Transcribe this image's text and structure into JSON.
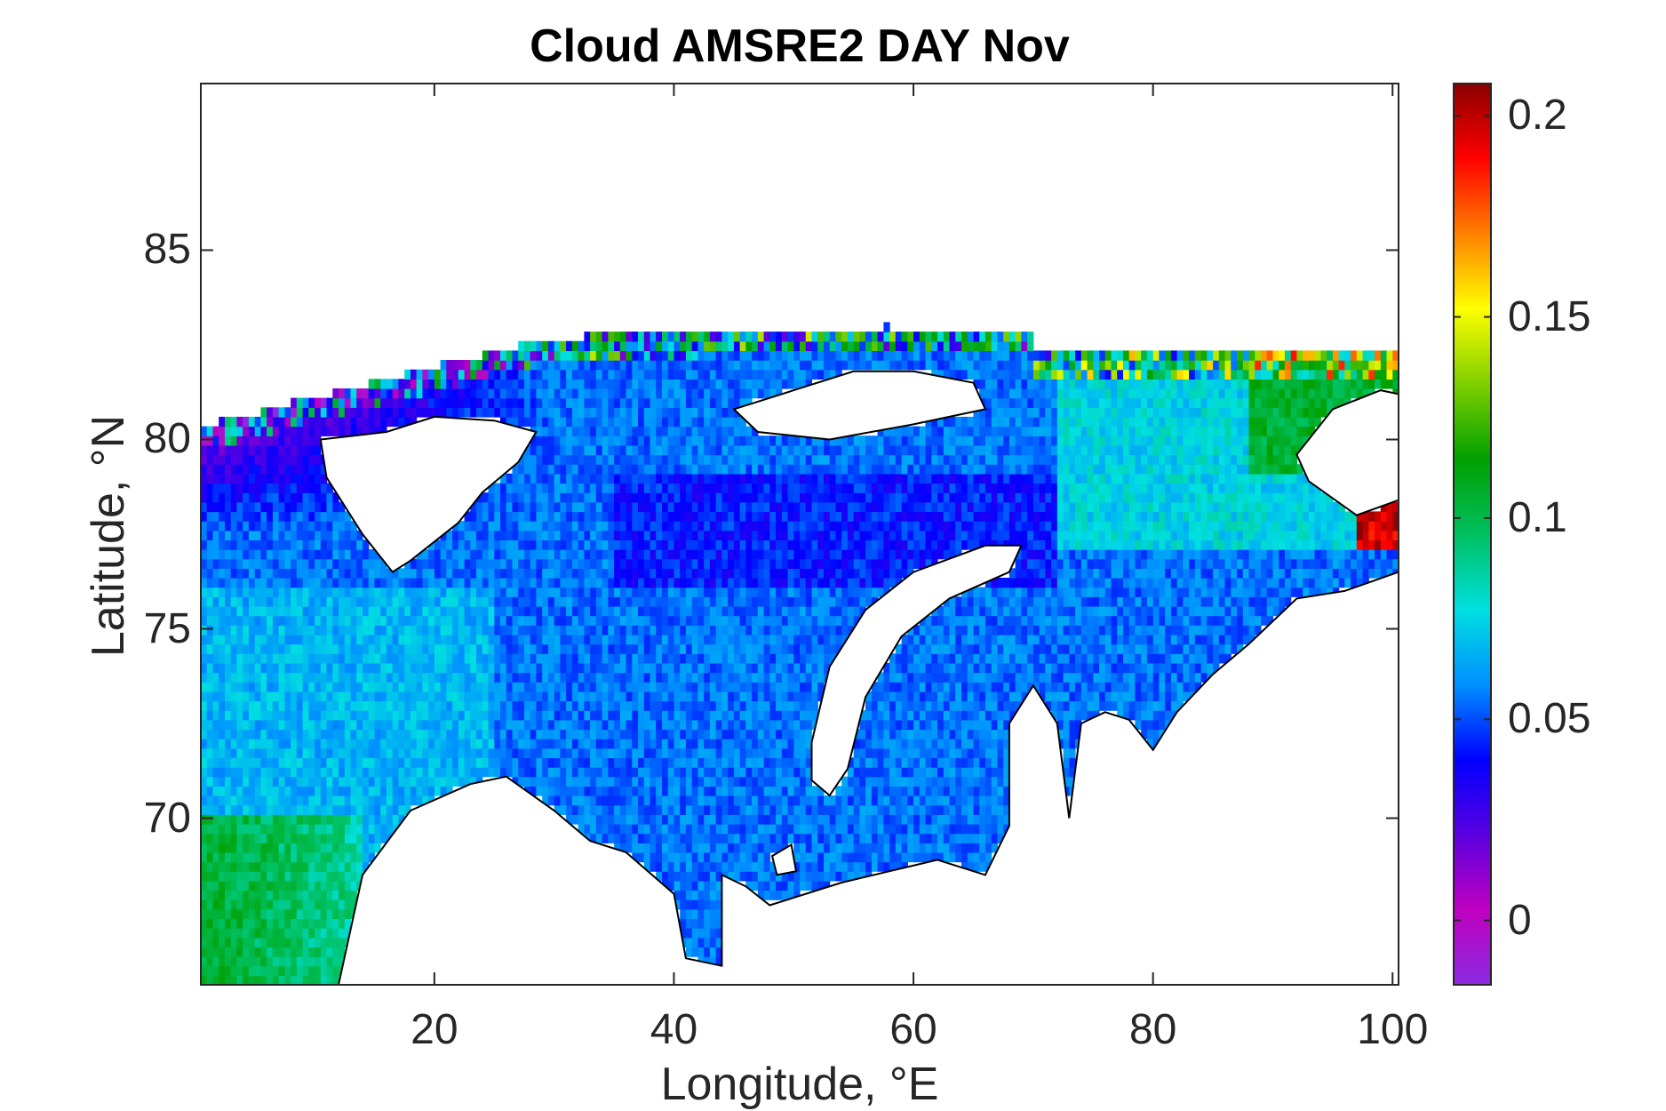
{
  "title": "Cloud AMSRE2 DAY Nov",
  "xlabel": "Longitude, °E",
  "ylabel": "Latitude, °N",
  "xaxis": {
    "ticks": [
      "20",
      "40",
      "60",
      "80",
      "100"
    ],
    "values": [
      20,
      40,
      60,
      80,
      100
    ],
    "range": [
      0.5,
      100.5
    ]
  },
  "yaxis": {
    "ticks": [
      "70",
      "75",
      "80",
      "85"
    ],
    "values": [
      70,
      75,
      80,
      85
    ],
    "range": [
      65.6,
      89.4
    ]
  },
  "colorbar": {
    "ticks": [
      "0",
      "0.05",
      "0.1",
      "0.15",
      "0.2"
    ],
    "values": [
      0,
      0.05,
      0.1,
      0.15,
      0.2
    ],
    "range": [
      -0.016,
      0.208
    ],
    "colormap": [
      "#8a2be2",
      "#c000c0",
      "#5a00e0",
      "#0000ff",
      "#0090ff",
      "#00e0e0",
      "#00c060",
      "#00a000",
      "#80d000",
      "#ffff00",
      "#ff8000",
      "#ff0000",
      "#8b0000"
    ]
  },
  "chart_data": {
    "type": "heatmap",
    "title": "Cloud AMSRE2 DAY Nov",
    "xlabel": "Longitude, °E",
    "ylabel": "Latitude, °N",
    "xlim": [
      0.5,
      100.5
    ],
    "ylim": [
      65.6,
      89.4
    ],
    "colorbar_range": [
      -0.016,
      0.208
    ],
    "description_of_field": "gridded values over Barents/Kara Sea region; mostly 0.04-0.07, low (~0) near Svalbard NW, high (~0.2) near Severnaya Zemlya"
  }
}
